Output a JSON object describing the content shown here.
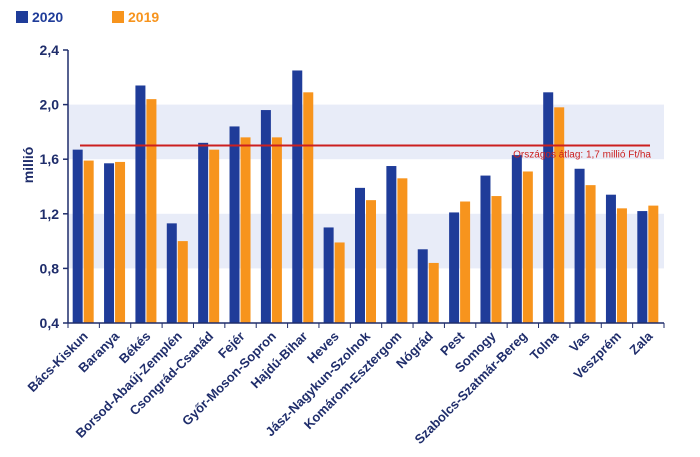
{
  "chart_data": {
    "type": "bar",
    "title": "",
    "xlabel": "",
    "ylabel": "millió",
    "ylim": [
      0.4,
      2.4
    ],
    "yticks": [
      "0,4",
      "0,8",
      "1,2",
      "1,6",
      "2,0",
      "2,4"
    ],
    "ytick_values": [
      0.4,
      0.8,
      1.2,
      1.6,
      2.0,
      2.4
    ],
    "legend_position": "top-left",
    "grid": "alternating horizontal bands",
    "categories": [
      "Bács-Kiskun",
      "Baranya",
      "Békés",
      "Borsod-Abaúj-Zemplén",
      "Csongrád-Csanád",
      "Fejér",
      "Győr-Moson-Sopron",
      "Hajdú-Bihar",
      "Heves",
      "Jász-Nagykun-Szolnok",
      "Komárom-Esztergom",
      "Nógrád",
      "Pest",
      "Somogy",
      "Szabolcs-Szatmár-Bereg",
      "Tolna",
      "Vas",
      "Veszprém",
      "Zala"
    ],
    "series": [
      {
        "name": "2020",
        "color": "#1f3c99",
        "values": [
          1.67,
          1.57,
          2.14,
          1.13,
          1.72,
          1.84,
          1.96,
          2.25,
          1.1,
          1.39,
          1.55,
          0.94,
          1.21,
          1.48,
          1.63,
          2.09,
          1.53,
          1.34,
          1.22
        ]
      },
      {
        "name": "2019",
        "color": "#f7941d",
        "values": [
          1.59,
          1.58,
          2.04,
          1.0,
          1.67,
          1.76,
          1.76,
          2.09,
          0.99,
          1.3,
          1.46,
          0.84,
          1.29,
          1.33,
          1.51,
          1.98,
          1.41,
          1.24,
          1.26
        ]
      }
    ],
    "reference_line": {
      "value": 1.7,
      "label": "Országos átlag: 1,7 millió Ft/ha",
      "color": "#cc1f1f"
    },
    "band_color": "#e8ecf8"
  }
}
